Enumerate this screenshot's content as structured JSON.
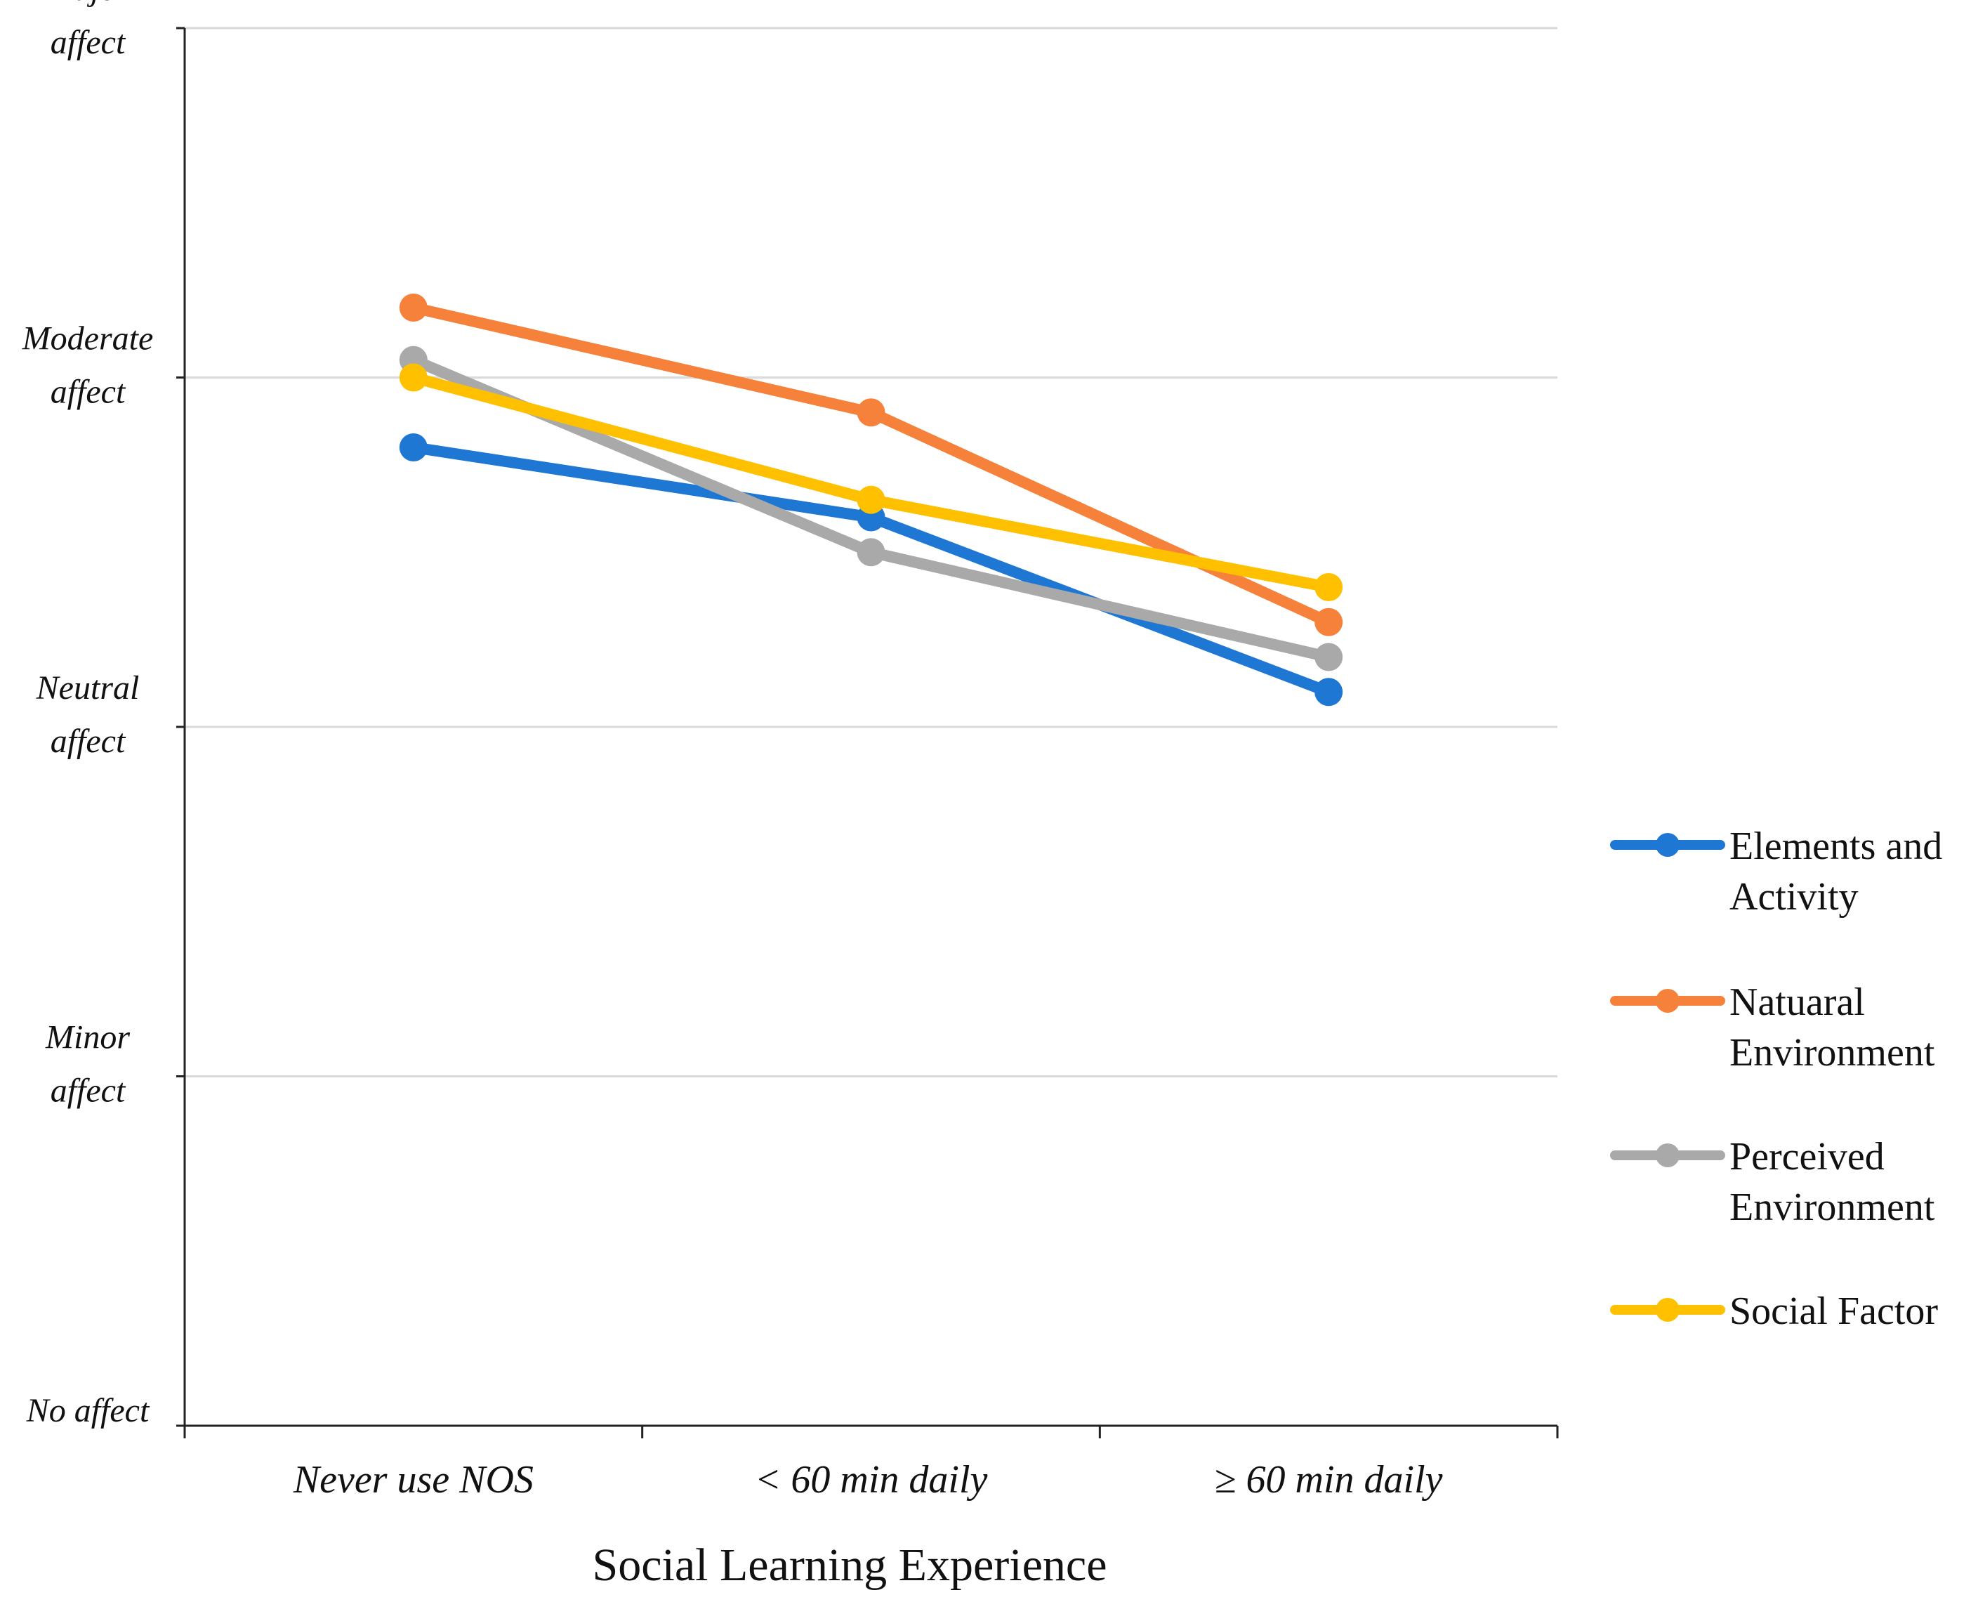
{
  "chart_data": {
    "type": "line",
    "title": "",
    "xlabel": "Social Learning Experience",
    "ylabel": "",
    "categories": [
      "Never use NOS",
      "< 60 min daily",
      "≥ 60 min daily"
    ],
    "yticks": [
      {
        "value": 0,
        "lines": [
          "No affect"
        ]
      },
      {
        "value": 1,
        "lines": [
          "Minor",
          "affect"
        ]
      },
      {
        "value": 2,
        "lines": [
          "Neutral",
          "affect"
        ]
      },
      {
        "value": 3,
        "lines": [
          "Moderate",
          "affect"
        ]
      },
      {
        "value": 4,
        "lines": [
          "Major",
          "affect"
        ]
      }
    ],
    "ylim": [
      0,
      4
    ],
    "grid": true,
    "legend_position": "right",
    "series": [
      {
        "name": "Elements and Activity",
        "legend_lines": [
          "Elements and",
          "Activity"
        ],
        "color": "#1f77d4",
        "values": [
          2.8,
          2.6,
          2.1
        ]
      },
      {
        "name": "Natuaral Environment",
        "legend_lines": [
          "Natuaral",
          "Environment"
        ],
        "color": "#f5813a",
        "values": [
          3.2,
          2.9,
          2.3
        ]
      },
      {
        "name": "Perceived Environment",
        "legend_lines": [
          "Perceived",
          "Environment"
        ],
        "color": "#a9a9a9",
        "values": [
          3.05,
          2.5,
          2.2
        ]
      },
      {
        "name": "Social Factor",
        "legend_lines": [
          "Social Factor"
        ],
        "color": "#ffc000",
        "values": [
          3.0,
          2.65,
          2.4
        ]
      }
    ]
  }
}
